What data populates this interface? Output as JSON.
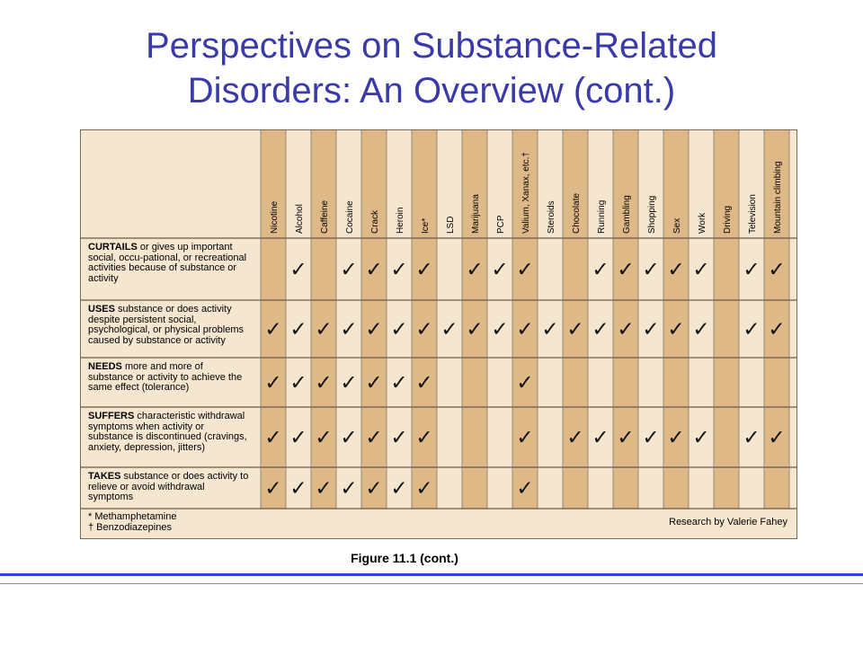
{
  "slide": {
    "title_line1": "Perspectives on Substance-Related",
    "title_line2": "Disorders:  An Overview (cont.)",
    "caption": "Figure 11.1 (cont.)"
  },
  "colors": {
    "title": "#3a3aa8",
    "stripe": "#deb887",
    "background": "#f5e6cf",
    "rule": "#2f3fe0"
  },
  "table": {
    "columns": [
      "Nicotine",
      "Alcohol",
      "Caffeine",
      "Cocaine",
      "Crack",
      "Heroin",
      "Ice*",
      "LSD",
      "Marijuana",
      "PCP",
      "Valium, Xanax, etc.†",
      "Steroids",
      "Chocolate",
      "Running",
      "Gambling",
      "Shopping",
      "Sex",
      "Work",
      "Driving",
      "Television",
      "Mountain climbing"
    ],
    "check_symbol": "✓",
    "rows": [
      {
        "bold": "CURTAILS",
        "text": " or gives up important social, occu-pational, or recreational activities because of substance or activity",
        "checks": [
          0,
          1,
          0,
          1,
          1,
          1,
          1,
          0,
          1,
          1,
          1,
          0,
          0,
          1,
          1,
          1,
          1,
          1,
          0,
          1,
          1
        ]
      },
      {
        "bold": "USES",
        "text": " substance or does activity despite persistent social, psychological, or physical problems caused by substance or activity",
        "checks": [
          1,
          1,
          1,
          1,
          1,
          1,
          1,
          1,
          1,
          1,
          1,
          1,
          1,
          1,
          1,
          1,
          1,
          1,
          0,
          1,
          1
        ]
      },
      {
        "bold": "NEEDS",
        "text": " more and more of substance or activity to achieve the same effect (tolerance)",
        "checks": [
          1,
          1,
          1,
          1,
          1,
          1,
          1,
          0,
          0,
          0,
          1,
          0,
          0,
          0,
          0,
          0,
          0,
          0,
          0,
          0,
          0
        ]
      },
      {
        "bold": "SUFFERS",
        "text": " characteristic withdrawal symptoms when activity or substance is discontinued (cravings, anxiety, depression, jitters)",
        "checks": [
          1,
          1,
          1,
          1,
          1,
          1,
          1,
          0,
          0,
          0,
          1,
          0,
          1,
          1,
          1,
          1,
          1,
          1,
          0,
          1,
          1
        ]
      },
      {
        "bold": "TAKES",
        "text": " substance or does activity to relieve or avoid withdrawal symptoms",
        "checks": [
          1,
          1,
          1,
          1,
          1,
          1,
          1,
          0,
          0,
          0,
          1,
          0,
          0,
          0,
          0,
          0,
          0,
          0,
          0,
          0,
          0
        ]
      }
    ],
    "footnote1": "* Methamphetamine",
    "footnote2": "† Benzodiazepines",
    "credit": "Research by Valerie Fahey"
  }
}
